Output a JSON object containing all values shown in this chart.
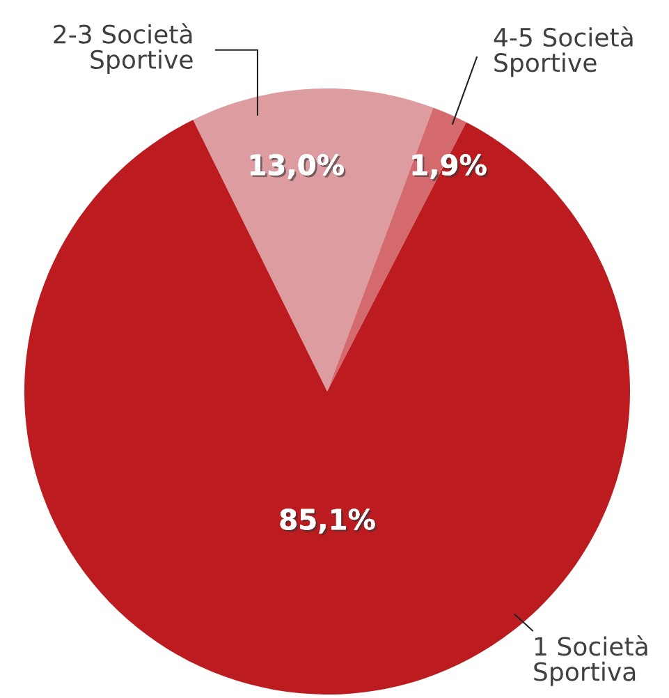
{
  "chart_data": {
    "type": "pie",
    "categories": [
      "2-3 Società\nSportive",
      "4-5 Società\nSportive",
      "1 Società\nSportiva"
    ],
    "values": [
      13.0,
      1.9,
      85.1
    ],
    "colors": [
      "#dc9ca0",
      "#d46a6e",
      "#bc1c1f"
    ],
    "value_labels": [
      "13,0%",
      "1,9%",
      "85,1%"
    ],
    "legend": false
  }
}
